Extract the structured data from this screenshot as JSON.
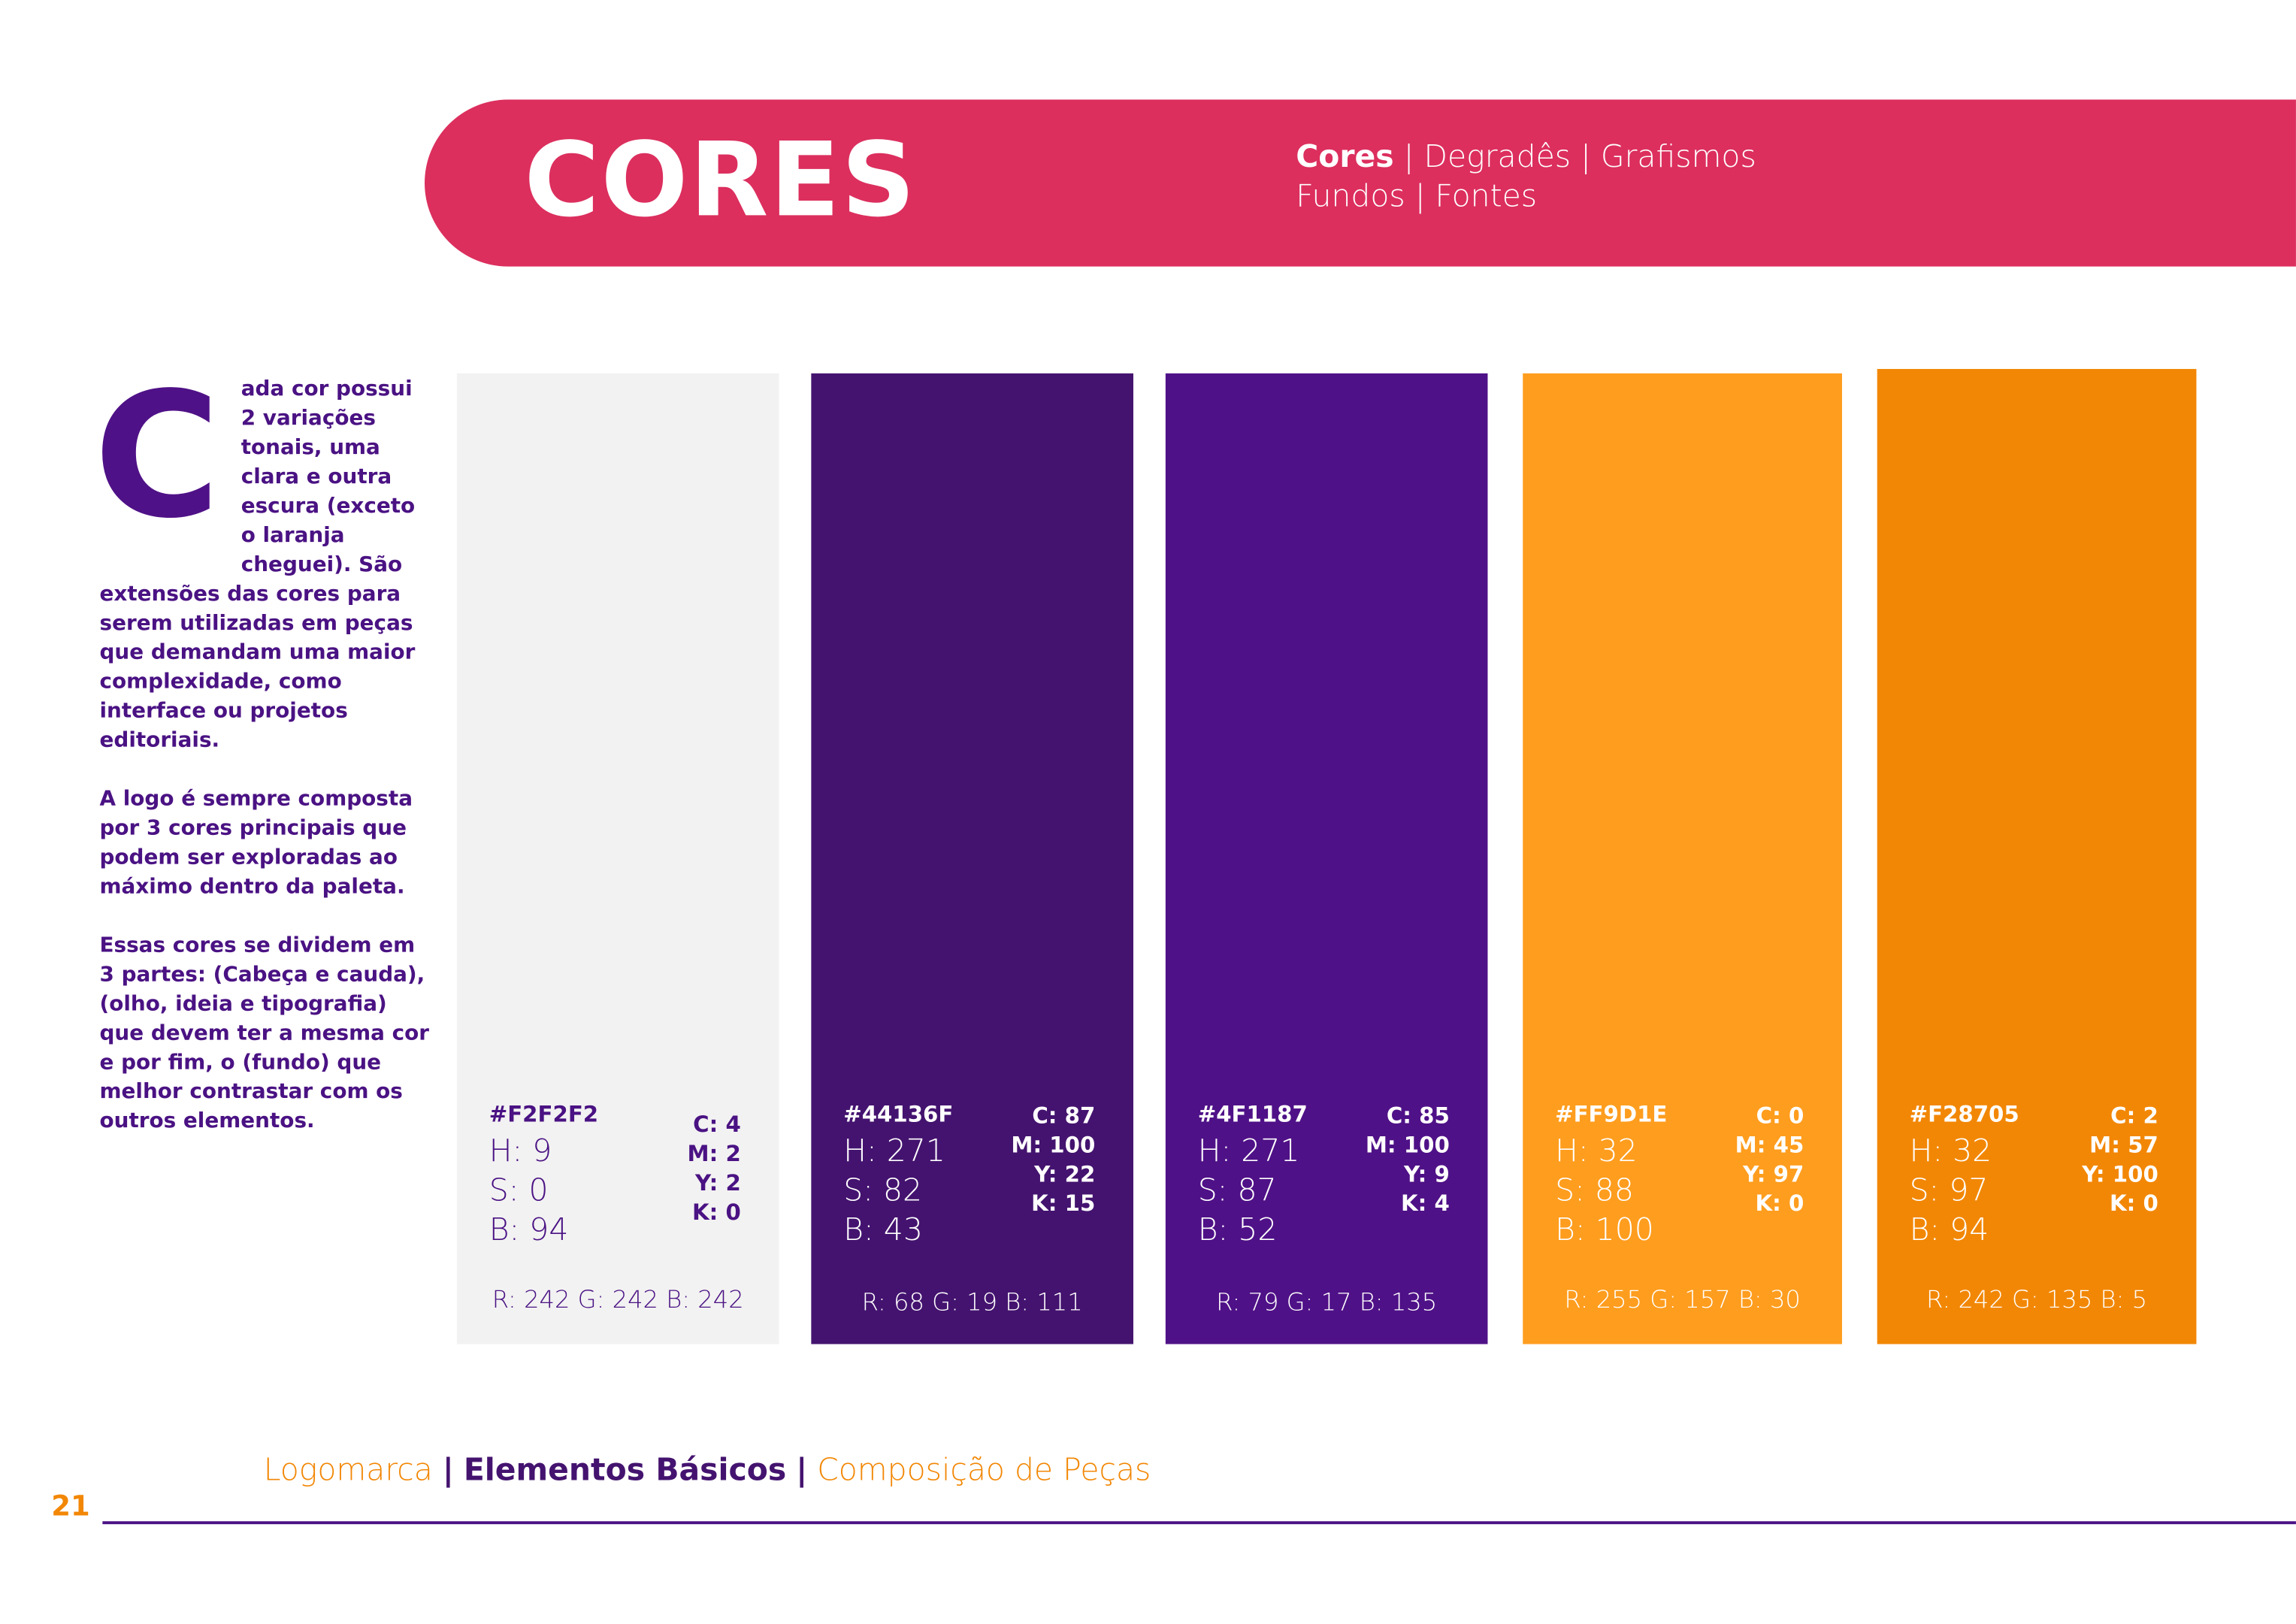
{
  "header": {
    "title": "CORES",
    "subnav": {
      "active": "Cores",
      "items": [
        "Degradês",
        "Grafismos"
      ],
      "line2": [
        "Fundos",
        "Fontes"
      ]
    }
  },
  "colors": {
    "band": "#dc2f5e",
    "text_purple": "#4a1283",
    "accent_orange": "#f28705"
  },
  "intro": {
    "dropcap": "C",
    "p1": "ada cor possui 2 variações tonais, uma clara e outra escura (exceto o laranja cheguei). São extensões das cores para serem utilizadas em peças que demandam uma maior complexidade, como interface ou projetos editoriais.",
    "p2": "A logo é sempre composta por 3 cores principais que podem ser exploradas ao máximo dentro da paleta.",
    "p3": "Essas cores se dividem em 3 partes: (Cabeça e cauda), (olho, ideia e tipografia) que devem ter a mesma cor e por fim, o (fundo) que melhor contrastar com os outros elementos."
  },
  "swatches": [
    {
      "hex": "#F2F2F2",
      "text_color": "#4a1283",
      "h": "H: 9",
      "s": "S: 0",
      "b": "B: 94",
      "c": "C: 4",
      "m": "M: 2",
      "y": "Y: 2",
      "k": "K: 0",
      "rgb": "R: 242 G: 242 B: 242"
    },
    {
      "hex": "#44136F",
      "text_color": "#ffffff",
      "h": "H: 271",
      "s": "S: 82",
      "b": "B: 43",
      "c": "C: 87",
      "m": "M: 100",
      "y": "Y: 22",
      "k": "K: 15",
      "rgb": "R: 68 G: 19 B: 111"
    },
    {
      "hex": "#4F1187",
      "text_color": "#ffffff",
      "h": "H: 271",
      "s": "S: 87",
      "b": "B: 52",
      "c": "C: 85",
      "m": "M: 100",
      "y": "Y: 9",
      "k": "K: 4",
      "rgb": "R: 79 G: 17 B: 135"
    },
    {
      "hex": "#FF9D1E",
      "text_color": "#ffffff",
      "h": "H: 32",
      "s": "S: 88",
      "b": "B: 100",
      "c": "C: 0",
      "m": "M: 45",
      "y": "Y: 97",
      "k": "K: 0",
      "rgb": "R: 255 G: 157 B: 30"
    },
    {
      "hex": "#F28705",
      "text_color": "#ffffff",
      "h": "H: 32",
      "s": "S: 97",
      "b": "B: 94",
      "c": "C: 2",
      "m": "M: 57",
      "y": "Y: 100",
      "k": "K: 0",
      "rgb": "R: 242 G: 135 B: 5"
    }
  ],
  "footer": {
    "nav": [
      "Logomarca",
      "Elementos Básicos",
      "Composição de Peças"
    ],
    "sep": "|",
    "page": "21"
  }
}
